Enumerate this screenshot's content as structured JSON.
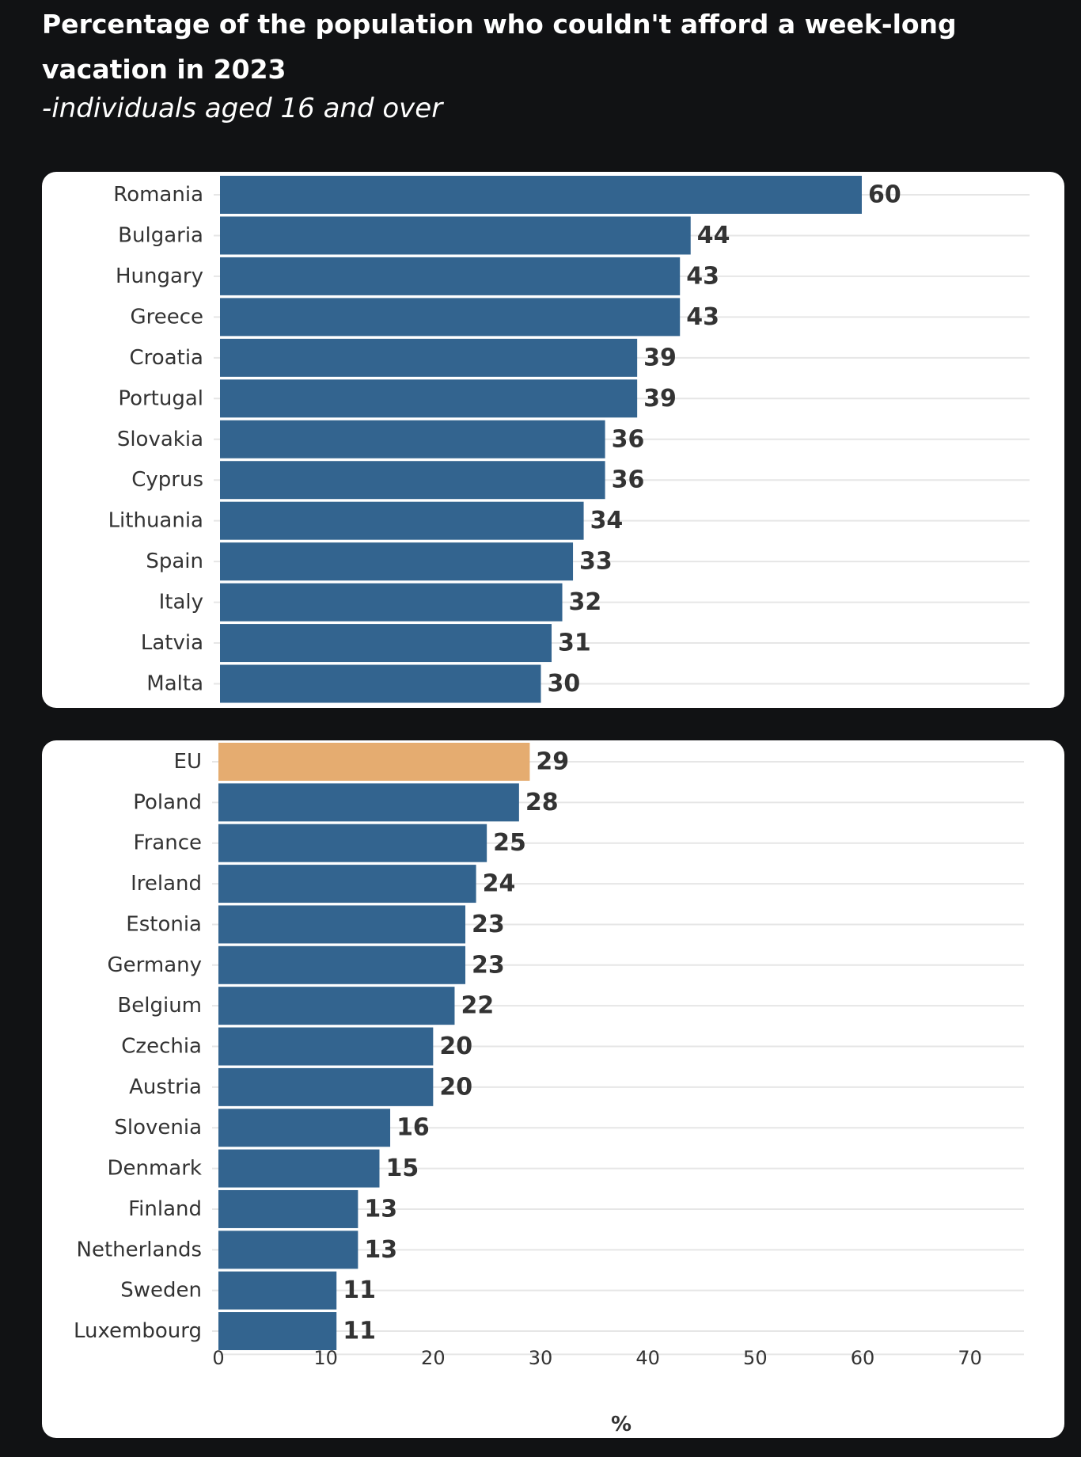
{
  "title": "Percentage of the population who couldn't afford a week-long vacation in 2023",
  "subtitle": "-individuals aged 16 and over",
  "colors": {
    "bar": "#33648f",
    "highlight": "#e5ac70",
    "gridline": "#e6e6e6",
    "panel_background": "#ffffff",
    "page_background": "#111214"
  },
  "chart_data": [
    {
      "type": "bar",
      "orientation": "horizontal",
      "categories": [
        "Romania",
        "Bulgaria",
        "Hungary",
        "Greece",
        "Croatia",
        "Portugal",
        "Slovakia",
        "Cyprus",
        "Lithuania",
        "Spain",
        "Italy",
        "Latvia",
        "Malta"
      ],
      "values": [
        60,
        44,
        43,
        43,
        39,
        39,
        36,
        36,
        34,
        33,
        32,
        31,
        30
      ],
      "xlim": [
        0,
        75
      ],
      "grid": true
    },
    {
      "type": "bar",
      "orientation": "horizontal",
      "categories": [
        "EU",
        "Poland",
        "France",
        "Ireland",
        "Estonia",
        "Germany",
        "Belgium",
        "Czechia",
        "Austria",
        "Slovenia",
        "Denmark",
        "Finland",
        "Netherlands",
        "Sweden",
        "Luxembourg"
      ],
      "values": [
        29,
        28,
        25,
        24,
        23,
        23,
        22,
        20,
        20,
        16,
        15,
        13,
        13,
        11,
        11
      ],
      "highlight": "EU",
      "xlim": [
        0,
        75
      ],
      "xticks": [
        0,
        10,
        20,
        30,
        40,
        50,
        60,
        70
      ],
      "xlabel": "%",
      "grid": true
    }
  ]
}
